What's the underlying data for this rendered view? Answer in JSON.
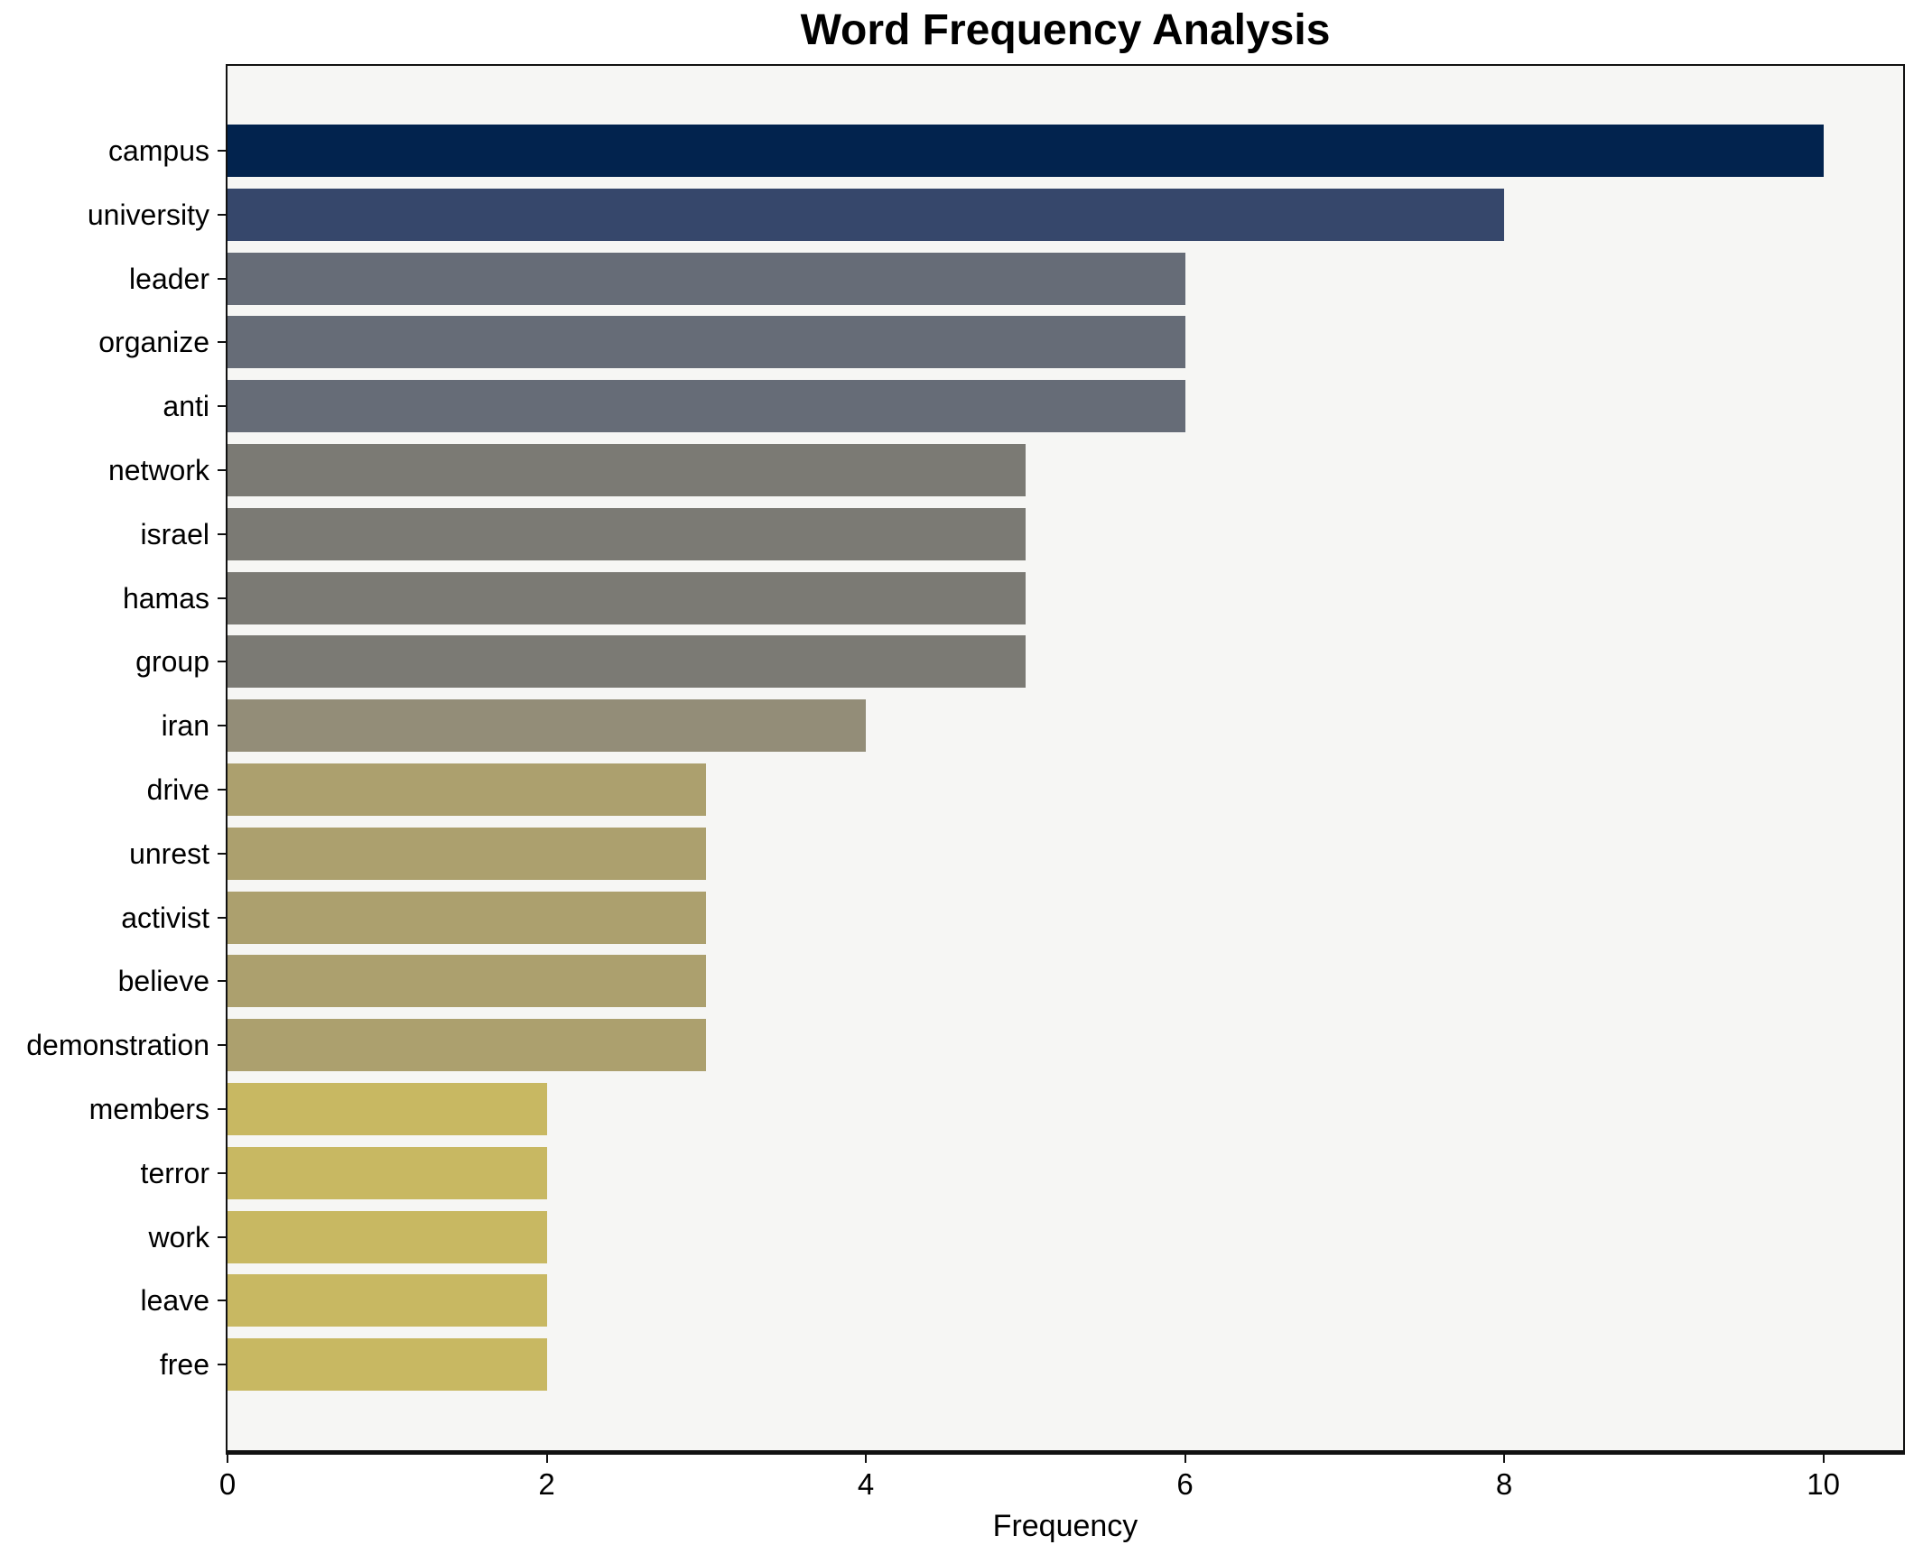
{
  "figure": {
    "title": "Word Frequency Analysis",
    "xlabel": "Frequency"
  },
  "chart_data": {
    "type": "bar",
    "orientation": "horizontal",
    "title": "Word Frequency Analysis",
    "xlabel": "Frequency",
    "ylabel": "",
    "categories": [
      "campus",
      "university",
      "leader",
      "organize",
      "anti",
      "network",
      "israel",
      "hamas",
      "group",
      "iran",
      "drive",
      "unrest",
      "activist",
      "believe",
      "demonstration",
      "members",
      "terror",
      "work",
      "leave",
      "free"
    ],
    "values": [
      10,
      8,
      6,
      6,
      6,
      5,
      5,
      5,
      5,
      4,
      3,
      3,
      3,
      3,
      3,
      2,
      2,
      2,
      2,
      2
    ],
    "bar_colors": [
      "#02234e",
      "#36476b",
      "#666c77",
      "#666c77",
      "#666c77",
      "#7b7a74",
      "#7b7a74",
      "#7b7a74",
      "#7b7a74",
      "#938d78",
      "#aca06e",
      "#aca06e",
      "#aca06e",
      "#aca06e",
      "#aca06e",
      "#c8b862",
      "#c8b862",
      "#c8b862",
      "#c8b862",
      "#c8b862"
    ],
    "xticks": [
      0,
      2,
      4,
      6,
      8,
      10
    ],
    "xlim": [
      0,
      10.5
    ],
    "grid": false,
    "legend_position": "none",
    "plot_background": "#f6f6f4",
    "figure_background": "#ffffff",
    "spine_color": "#111111"
  }
}
